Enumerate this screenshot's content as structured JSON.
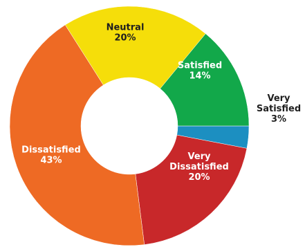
{
  "chart_data": {
    "type": "pie",
    "donut": true,
    "title": "",
    "slices": [
      {
        "label": "Very Satisfied",
        "value": 3,
        "display": "3%",
        "color": "#1C8FC1",
        "label_color": "#1f1f1f",
        "label_lines": [
          "Very",
          "Satisfied",
          "3%"
        ]
      },
      {
        "label": "Very Dissatisfied",
        "value": 20,
        "display": "20%",
        "color": "#C8282A",
        "label_color": "#ffffff",
        "label_lines": [
          "Very",
          "Dissatisfied",
          "20%"
        ]
      },
      {
        "label": "Dissatisfied",
        "value": 43,
        "display": "43%",
        "color": "#EE6A24",
        "label_color": "#ffffff",
        "label_lines": [
          "Dissatisfied",
          "43%"
        ]
      },
      {
        "label": "Neutral",
        "value": 20,
        "display": "20%",
        "color": "#F5DE0A",
        "label_color": "#1f1f1f",
        "label_lines": [
          "Neutral",
          "20%"
        ]
      },
      {
        "label": "Satisfied",
        "value": 14,
        "display": "14%",
        "color": "#12A84A",
        "label_color": "#ffffff",
        "label_lines": [
          "Satisfied",
          "14%"
        ]
      }
    ],
    "legend": "none"
  }
}
